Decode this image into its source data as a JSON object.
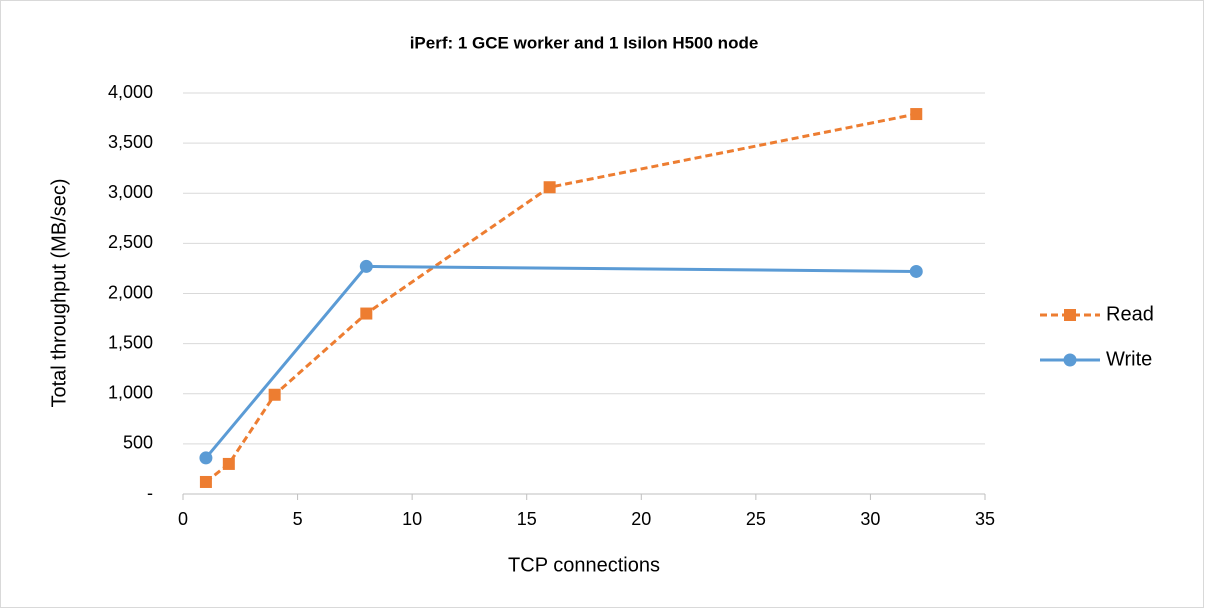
{
  "chart_data": {
    "type": "line",
    "title": "iPerf: 1 GCE worker and 1 Isilon H500 node",
    "x_label": "TCP connections",
    "y_label": "Total throughput (MB/sec)",
    "xlim": [
      0,
      35
    ],
    "xticks": [
      0,
      5,
      10,
      15,
      20,
      25,
      30,
      35
    ],
    "ylim": [
      0,
      4000
    ],
    "yticks": [
      {
        "value": 0,
        "label": "-"
      },
      500,
      {
        "value": 1000,
        "label": "1,000"
      },
      {
        "value": 1500,
        "label": "1,500"
      },
      {
        "value": 2000,
        "label": "2,000"
      },
      {
        "value": 2500,
        "label": "2,500"
      },
      {
        "value": 3000,
        "label": "3,000"
      },
      {
        "value": 3500,
        "label": "3,500"
      },
      {
        "value": 4000,
        "label": "4,000"
      }
    ],
    "grid": true,
    "legend": "right",
    "series": [
      {
        "name": "Read",
        "color": "#ed7d31",
        "dash": true,
        "marker": "square",
        "x": [
          1,
          2,
          4,
          8,
          16,
          32
        ],
        "values": [
          120,
          300,
          990,
          1800,
          3060,
          3790
        ]
      },
      {
        "name": "Write",
        "color": "#5b9bd5",
        "dash": false,
        "marker": "circle",
        "x": [
          1,
          8,
          32
        ],
        "values": [
          360,
          2270,
          2220
        ]
      }
    ]
  }
}
